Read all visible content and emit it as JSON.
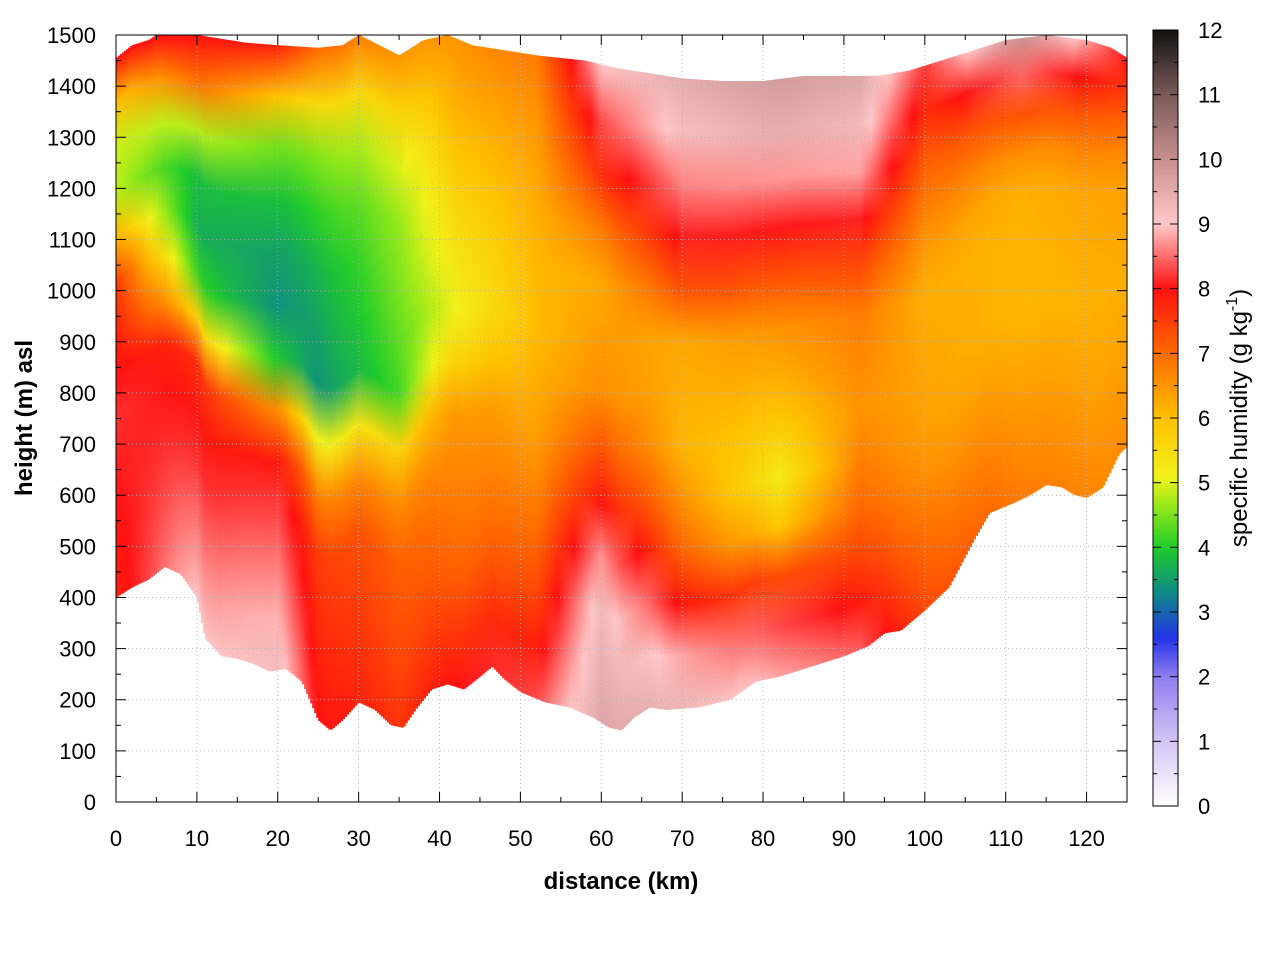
{
  "chart_data": {
    "type": "heatmap",
    "title": "",
    "xlabel": "distance (km)",
    "ylabel": "height (m) asl",
    "xlim": [
      0,
      125
    ],
    "ylim": [
      0,
      1500
    ],
    "x_ticks": [
      0,
      10,
      20,
      30,
      40,
      50,
      60,
      70,
      80,
      90,
      100,
      110,
      120
    ],
    "y_ticks": [
      0,
      100,
      200,
      300,
      400,
      500,
      600,
      700,
      800,
      900,
      1000,
      1100,
      1200,
      1300,
      1400,
      1500
    ],
    "grid": true,
    "colorbar": {
      "label_main": "specific humidity (g kg",
      "label_sup": "-1",
      "label_end": ")",
      "range": [
        0,
        12
      ],
      "ticks": [
        0,
        1,
        2,
        3,
        4,
        5,
        6,
        7,
        8,
        9,
        10,
        11,
        12
      ],
      "stops": [
        {
          "value": 0,
          "color": "#ffffff"
        },
        {
          "value": 1,
          "color": "#d6c4f6"
        },
        {
          "value": 2,
          "color": "#8f7df0"
        },
        {
          "value": 2.6,
          "color": "#2233e6"
        },
        {
          "value": 3.3,
          "color": "#0f8a86"
        },
        {
          "value": 4,
          "color": "#1fcc2a"
        },
        {
          "value": 4.6,
          "color": "#8fe81a"
        },
        {
          "value": 5.1,
          "color": "#f2f21a"
        },
        {
          "value": 6,
          "color": "#ffc000"
        },
        {
          "value": 7,
          "color": "#ff6a00"
        },
        {
          "value": 8,
          "color": "#ff1010"
        },
        {
          "value": 9,
          "color": "#ffc8c8"
        },
        {
          "value": 10,
          "color": "#c8908f"
        },
        {
          "value": 11,
          "color": "#7a5a58"
        },
        {
          "value": 12,
          "color": "#111111"
        }
      ]
    },
    "terrain_height": [
      [
        0,
        400
      ],
      [
        2,
        420
      ],
      [
        4,
        435
      ],
      [
        6,
        460
      ],
      [
        8,
        445
      ],
      [
        10,
        400
      ],
      [
        11,
        320
      ],
      [
        13,
        285
      ],
      [
        15,
        280
      ],
      [
        17,
        270
      ],
      [
        19,
        255
      ],
      [
        21,
        260
      ],
      [
        23,
        235
      ],
      [
        25,
        160
      ],
      [
        26.5,
        140
      ],
      [
        28,
        160
      ],
      [
        30,
        195
      ],
      [
        32,
        180
      ],
      [
        34,
        150
      ],
      [
        35.5,
        145
      ],
      [
        37,
        180
      ],
      [
        39,
        220
      ],
      [
        41,
        230
      ],
      [
        43,
        220
      ],
      [
        45,
        245
      ],
      [
        46.5,
        265
      ],
      [
        48,
        240
      ],
      [
        50,
        215
      ],
      [
        53,
        195
      ],
      [
        56,
        185
      ],
      [
        59,
        165
      ],
      [
        61,
        145
      ],
      [
        62.5,
        140
      ],
      [
        64,
        165
      ],
      [
        66,
        185
      ],
      [
        68,
        180
      ],
      [
        72,
        185
      ],
      [
        76,
        200
      ],
      [
        79,
        235
      ],
      [
        82,
        245
      ],
      [
        86,
        265
      ],
      [
        90,
        285
      ],
      [
        93,
        305
      ],
      [
        95,
        330
      ],
      [
        97,
        335
      ],
      [
        100,
        375
      ],
      [
        103,
        420
      ],
      [
        106,
        510
      ],
      [
        108,
        565
      ],
      [
        111,
        585
      ],
      [
        113,
        600
      ],
      [
        115,
        620
      ],
      [
        117,
        615
      ],
      [
        118.5,
        600
      ],
      [
        120,
        595
      ],
      [
        122,
        615
      ],
      [
        124,
        680
      ],
      [
        125,
        695
      ]
    ],
    "top_height": [
      [
        0,
        1455
      ],
      [
        2,
        1480
      ],
      [
        4,
        1490
      ],
      [
        5,
        1500
      ],
      [
        10,
        1500
      ],
      [
        14,
        1490
      ],
      [
        16,
        1485
      ],
      [
        20,
        1480
      ],
      [
        25,
        1475
      ],
      [
        28,
        1480
      ],
      [
        30,
        1500
      ],
      [
        35,
        1460
      ],
      [
        38,
        1490
      ],
      [
        41,
        1500
      ],
      [
        44,
        1480
      ],
      [
        48,
        1470
      ],
      [
        52,
        1460
      ],
      [
        58,
        1450
      ],
      [
        62,
        1435
      ],
      [
        66,
        1425
      ],
      [
        70,
        1415
      ],
      [
        75,
        1410
      ],
      [
        80,
        1410
      ],
      [
        85,
        1420
      ],
      [
        90,
        1420
      ],
      [
        94,
        1420
      ],
      [
        98,
        1430
      ],
      [
        102,
        1450
      ],
      [
        106,
        1470
      ],
      [
        110,
        1490
      ],
      [
        115,
        1500
      ],
      [
        120,
        1490
      ],
      [
        123,
        1475
      ],
      [
        125,
        1455
      ]
    ],
    "humidity_profiles": [
      {
        "x": 0,
        "levels": [
          [
            0,
            7.8
          ],
          [
            0.35,
            8.2
          ],
          [
            0.6,
            7.5
          ],
          [
            0.7,
            5.5
          ],
          [
            0.78,
            4.4
          ],
          [
            0.9,
            5.5
          ],
          [
            0.95,
            7.0
          ],
          [
            1,
            8.0
          ]
        ]
      },
      {
        "x": 10,
        "levels": [
          [
            0,
            9.0
          ],
          [
            0.3,
            8.0
          ],
          [
            0.45,
            7.6
          ],
          [
            0.52,
            5.0
          ],
          [
            0.6,
            3.9
          ],
          [
            0.72,
            3.5
          ],
          [
            0.85,
            5.0
          ],
          [
            0.92,
            7.0
          ],
          [
            1,
            8.0
          ]
        ]
      },
      {
        "x": 20,
        "levels": [
          [
            0,
            9.2
          ],
          [
            0.25,
            8.3
          ],
          [
            0.4,
            7.6
          ],
          [
            0.45,
            4.6
          ],
          [
            0.55,
            3.3
          ],
          [
            0.7,
            3.6
          ],
          [
            0.82,
            4.2
          ],
          [
            0.9,
            5.5
          ],
          [
            0.96,
            7.0
          ],
          [
            1,
            7.8
          ]
        ]
      },
      {
        "x": 25,
        "levels": [
          [
            0,
            8.0
          ],
          [
            0.3,
            7.4
          ],
          [
            0.42,
            5.0
          ],
          [
            0.5,
            3.4
          ],
          [
            0.7,
            3.8
          ],
          [
            0.85,
            4.6
          ],
          [
            0.95,
            6.0
          ],
          [
            1,
            7.0
          ]
        ]
      },
      {
        "x": 35,
        "levels": [
          [
            0,
            7.6
          ],
          [
            0.3,
            7.0
          ],
          [
            0.42,
            5.6
          ],
          [
            0.5,
            4.2
          ],
          [
            0.65,
            4.5
          ],
          [
            0.8,
            4.7
          ],
          [
            0.9,
            5.5
          ],
          [
            1,
            6.5
          ]
        ]
      },
      {
        "x": 42,
        "levels": [
          [
            0,
            8.0
          ],
          [
            0.2,
            7.0
          ],
          [
            0.45,
            6.4
          ],
          [
            0.55,
            5.0
          ],
          [
            0.65,
            5.3
          ],
          [
            0.8,
            5.8
          ],
          [
            0.9,
            6.2
          ],
          [
            1,
            6.5
          ]
        ]
      },
      {
        "x": 52,
        "levels": [
          [
            0,
            8.3
          ],
          [
            0.2,
            7.2
          ],
          [
            0.4,
            6.4
          ],
          [
            0.6,
            6.0
          ],
          [
            0.75,
            6.2
          ],
          [
            0.88,
            6.4
          ],
          [
            1,
            6.8
          ]
        ]
      },
      {
        "x": 60,
        "levels": [
          [
            0,
            9.6
          ],
          [
            0.2,
            9.2
          ],
          [
            0.35,
            7.8
          ],
          [
            0.5,
            6.6
          ],
          [
            0.7,
            6.2
          ],
          [
            0.8,
            7.4
          ],
          [
            0.9,
            8.2
          ],
          [
            1,
            9.0
          ]
        ]
      },
      {
        "x": 70,
        "levels": [
          [
            0,
            9.3
          ],
          [
            0.12,
            8.6
          ],
          [
            0.2,
            7.4
          ],
          [
            0.4,
            6.1
          ],
          [
            0.6,
            6.3
          ],
          [
            0.7,
            7.8
          ],
          [
            0.8,
            8.4
          ],
          [
            0.9,
            9.1
          ],
          [
            1,
            9.5
          ]
        ]
      },
      {
        "x": 82,
        "levels": [
          [
            0,
            8.8
          ],
          [
            0.12,
            8.1
          ],
          [
            0.2,
            6.8
          ],
          [
            0.3,
            5.0
          ],
          [
            0.45,
            6.0
          ],
          [
            0.6,
            6.6
          ],
          [
            0.72,
            7.8
          ],
          [
            0.82,
            8.6
          ],
          [
            0.9,
            9.4
          ],
          [
            1,
            9.8
          ]
        ]
      },
      {
        "x": 92,
        "levels": [
          [
            0,
            8.4
          ],
          [
            0.2,
            7.2
          ],
          [
            0.4,
            6.5
          ],
          [
            0.6,
            6.8
          ],
          [
            0.72,
            7.8
          ],
          [
            0.8,
            8.6
          ],
          [
            0.9,
            9.2
          ],
          [
            1,
            9.6
          ]
        ]
      },
      {
        "x": 100,
        "levels": [
          [
            0,
            7.4
          ],
          [
            0.3,
            6.4
          ],
          [
            0.6,
            6.2
          ],
          [
            0.8,
            7.0
          ],
          [
            0.9,
            7.6
          ],
          [
            1,
            8.2
          ]
        ]
      },
      {
        "x": 112,
        "levels": [
          [
            0,
            6.8
          ],
          [
            0.4,
            6.1
          ],
          [
            0.7,
            6.2
          ],
          [
            0.85,
            7.4
          ],
          [
            0.95,
            9.0
          ],
          [
            1,
            10.0
          ]
        ]
      },
      {
        "x": 125,
        "levels": [
          [
            0,
            6.6
          ],
          [
            0.4,
            6.2
          ],
          [
            0.7,
            6.4
          ],
          [
            0.85,
            7.2
          ],
          [
            0.95,
            7.8
          ],
          [
            1,
            8.0
          ]
        ]
      }
    ]
  }
}
